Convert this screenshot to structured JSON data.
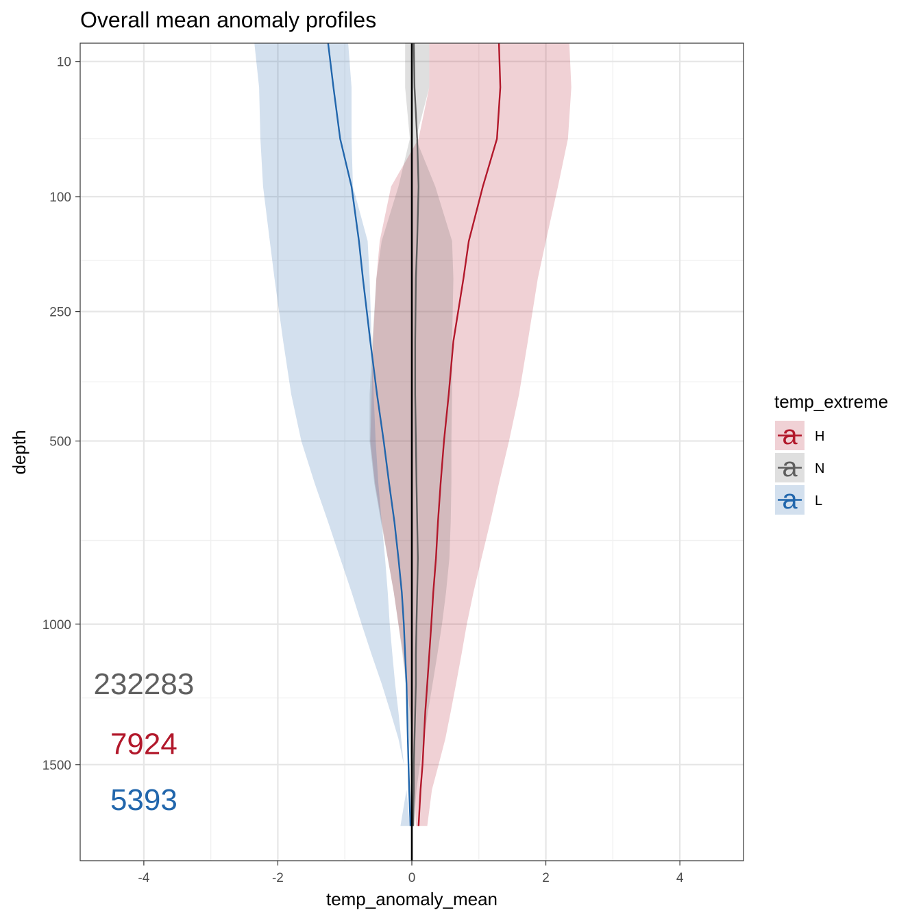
{
  "chart_data": {
    "type": "area",
    "title": "Overall mean anomaly profiles",
    "xlabel": "temp_anomaly_mean",
    "ylabel": "depth",
    "xlim": [
      -4.95,
      4.95
    ],
    "ylim": [
      1900,
      5
    ],
    "y_scale": "sqrt-reversed",
    "x_ticks": [
      -4,
      -2,
      0,
      2,
      4
    ],
    "x_tick_labels": [
      "-4",
      "-2",
      "0",
      "2",
      "4"
    ],
    "y_ticks": [
      10,
      100,
      250,
      500,
      1000,
      1500
    ],
    "y_tick_labels": [
      "10",
      "100",
      "250",
      "500",
      "1000",
      "1500"
    ],
    "y_minor_ticks": [
      50,
      175,
      375,
      750,
      1250
    ],
    "grid": true,
    "vline_x": 0,
    "legend": {
      "title": "temp_extreme",
      "position": "right",
      "glyph": "a"
    },
    "depth": [
      5,
      20,
      50,
      90,
      150,
      200,
      300,
      400,
      500,
      600,
      700,
      800,
      900,
      1000,
      1100,
      1200,
      1300,
      1400,
      1500,
      1600,
      1750
    ],
    "series": [
      {
        "name": "H",
        "color": "#b2182b",
        "mean": [
          1.3,
          1.32,
          1.27,
          1.06,
          0.85,
          0.77,
          0.62,
          0.55,
          0.48,
          0.43,
          0.39,
          0.36,
          0.32,
          0.29,
          0.26,
          0.23,
          0.2,
          0.18,
          0.16,
          0.13,
          0.1
        ],
        "lower": [
          0.26,
          0.26,
          0.1,
          -0.31,
          -0.48,
          -0.53,
          -0.58,
          -0.6,
          -0.62,
          -0.55,
          -0.45,
          -0.36,
          -0.27,
          -0.2,
          -0.13,
          -0.08,
          -0.03,
          0.0,
          0.03,
          0.04,
          0.06
        ],
        "upper": [
          2.35,
          2.38,
          2.33,
          2.18,
          2.0,
          1.88,
          1.73,
          1.6,
          1.45,
          1.3,
          1.17,
          1.04,
          0.92,
          0.82,
          0.74,
          0.66,
          0.58,
          0.5,
          0.4,
          0.3,
          0.23
        ]
      },
      {
        "name": "N",
        "color": "#5f5f5f",
        "mean": [
          0.03,
          0.04,
          0.08,
          0.1,
          0.08,
          0.06,
          0.05,
          0.05,
          0.06,
          0.07,
          0.08,
          0.09,
          0.08,
          0.07,
          0.06,
          0.06,
          0.05,
          0.04,
          0.03,
          0.03,
          0.02
        ],
        "lower": [
          -0.1,
          -0.1,
          -0.03,
          -0.2,
          -0.45,
          -0.53,
          -0.59,
          -0.63,
          -0.63,
          -0.56,
          -0.46,
          -0.36,
          -0.27,
          -0.2,
          -0.14,
          -0.09,
          -0.06,
          -0.04,
          -0.02,
          -0.02,
          -0.03
        ],
        "upper": [
          0.26,
          0.26,
          0.06,
          0.35,
          0.6,
          0.62,
          0.6,
          0.6,
          0.59,
          0.59,
          0.58,
          0.56,
          0.51,
          0.45,
          0.38,
          0.31,
          0.24,
          0.18,
          0.12,
          0.07,
          0.03
        ]
      },
      {
        "name": "L",
        "color": "#2166ac",
        "mean": [
          -1.25,
          -1.17,
          -1.07,
          -0.9,
          -0.79,
          -0.73,
          -0.62,
          -0.52,
          -0.42,
          -0.34,
          -0.26,
          -0.2,
          -0.15,
          -0.12,
          -0.1,
          -0.08,
          -0.07,
          -0.06,
          -0.05,
          -0.04,
          -0.02
        ],
        "lower": [
          -2.35,
          -2.28,
          -2.26,
          -2.22,
          -2.12,
          -2.05,
          -1.92,
          -1.8,
          -1.65,
          -1.45,
          -1.25,
          -1.07,
          -0.9,
          -0.75,
          -0.6,
          -0.45,
          -0.32,
          -0.2,
          -0.12,
          -0.08,
          -0.17
        ],
        "upper": [
          -0.95,
          -0.9,
          -0.9,
          -0.88,
          -0.66,
          -0.63,
          -0.6,
          -0.57,
          -0.54,
          -0.5,
          -0.45,
          -0.4,
          -0.36,
          -0.33,
          -0.29,
          -0.25,
          -0.2,
          -0.16,
          -0.12,
          -0.08,
          -0.03
        ]
      }
    ],
    "annotations": [
      {
        "text": "232283",
        "color": "#5f5f5f",
        "x": -4.0,
        "depth": 1200
      },
      {
        "text": "7924",
        "color": "#b2182b",
        "x": -4.0,
        "depth": 1420
      },
      {
        "text": "5393",
        "color": "#2166ac",
        "x": -4.0,
        "depth": 1640
      }
    ]
  }
}
